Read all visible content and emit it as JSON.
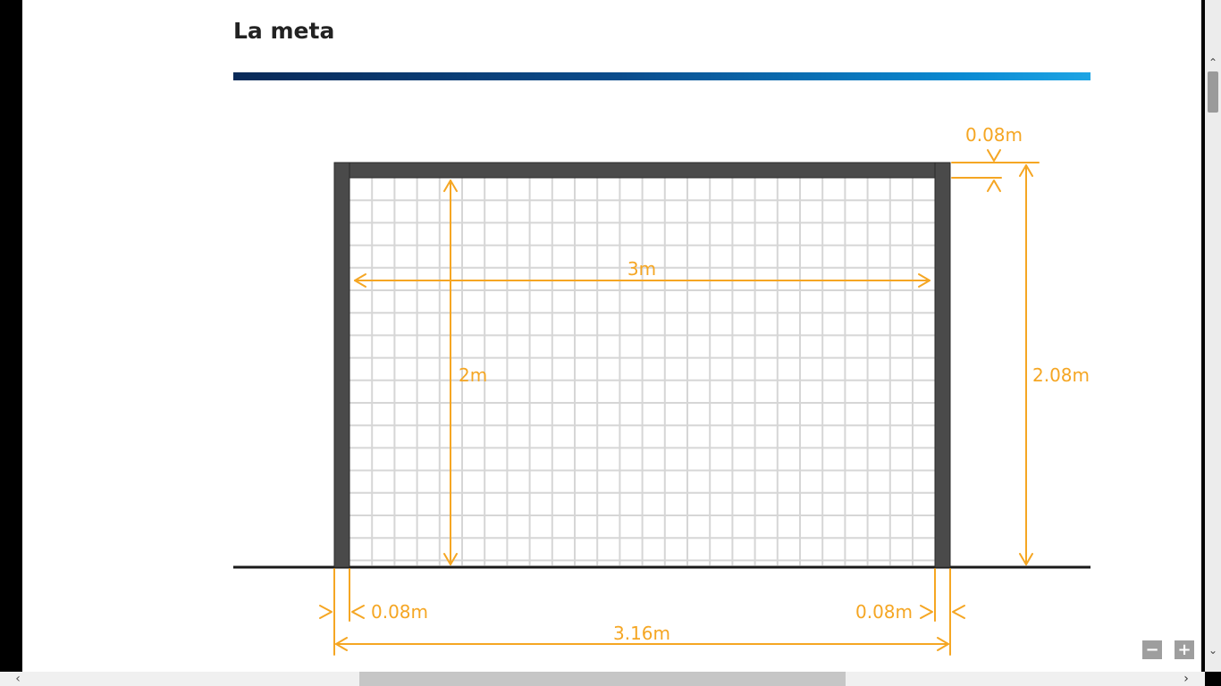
{
  "page": {
    "title": "La meta"
  },
  "diagram": {
    "net_width_label": "3m",
    "net_height_label": "2m",
    "total_height_label": "2.08m",
    "bar_thickness_label": "0.08m",
    "left_post_label": "0.08m",
    "right_post_label": "0.08m",
    "total_width_label": "3.16m",
    "colors": {
      "frame": "#4a4a4a",
      "dimension": "#f5a623",
      "grid": "#d6d6d6",
      "title_bar_start": "#0a2a58",
      "title_bar_end": "#1ea4e4"
    }
  },
  "controls": {
    "zoom_out_label": "−",
    "zoom_in_label": "+",
    "scroll_up_icon": "chevron-up-icon",
    "scroll_down_icon": "chevron-down-icon",
    "scroll_left_icon": "chevron-left-icon",
    "scroll_right_icon": "chevron-right-icon"
  }
}
